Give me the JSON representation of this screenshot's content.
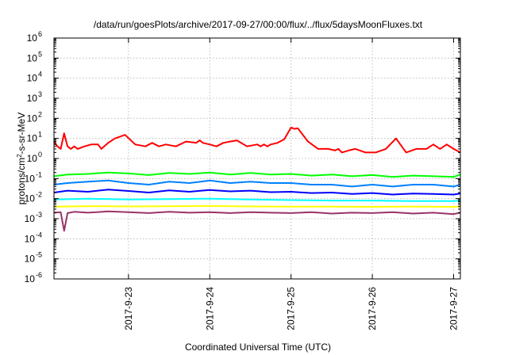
{
  "chart_data": {
    "type": "line",
    "title": "/data/run/goesPlots/archive/2017-09-27/00:00/flux/../flux/5daysMoonFluxes.txt",
    "xlabel": "Coordinated Universal Time (UTC)",
    "ylabel": {
      "pre": "protons/cm",
      "sup": "2",
      "post": "-s-sr-MeV"
    },
    "y_scale": "log",
    "ylim_exponent": [
      -6,
      6
    ],
    "y_ticks": [
      {
        "base": "10",
        "exp": "6"
      },
      {
        "base": "10",
        "exp": "5"
      },
      {
        "base": "10",
        "exp": "4"
      },
      {
        "base": "10",
        "exp": "3"
      },
      {
        "base": "10",
        "exp": "2"
      },
      {
        "base": "10",
        "exp": "1"
      },
      {
        "base": "10",
        "exp": "0"
      },
      {
        "base": "10",
        "exp": "-1"
      },
      {
        "base": "10",
        "exp": "-2"
      },
      {
        "base": "10",
        "exp": "-3"
      },
      {
        "base": "10",
        "exp": "-4"
      },
      {
        "base": "10",
        "exp": "-5"
      },
      {
        "base": "10",
        "exp": "-6"
      }
    ],
    "xlim": [
      "2017-09-22T02:00",
      "2017-09-27T02:00"
    ],
    "x_ticks": [
      {
        "label": "2017-9-23",
        "t": "2017-09-23T00:00"
      },
      {
        "label": "2017-9-24",
        "t": "2017-09-24T00:00"
      },
      {
        "label": "2017-9-25",
        "t": "2017-09-25T00:00"
      },
      {
        "label": "2017-9-26",
        "t": "2017-09-26T00:00"
      },
      {
        "label": "2017-9-27",
        "t": "2017-09-27T00:00"
      }
    ],
    "grid": true,
    "legend": null,
    "series": [
      {
        "color": "#ff0000",
        "x": [
          "2017-09-22T02:00",
          "2017-09-22T03:00",
          "2017-09-22T04:00",
          "2017-09-22T05:00",
          "2017-09-22T06:00",
          "2017-09-22T07:00",
          "2017-09-22T08:00",
          "2017-09-22T09:00",
          "2017-09-22T11:00",
          "2017-09-22T13:00",
          "2017-09-22T15:00",
          "2017-09-22T16:00",
          "2017-09-22T18:00",
          "2017-09-22T20:00",
          "2017-09-22T23:00",
          "2017-09-23T02:00",
          "2017-09-23T05:00",
          "2017-09-23T07:00",
          "2017-09-23T09:00",
          "2017-09-23T11:00",
          "2017-09-23T14:00",
          "2017-09-23T17:00",
          "2017-09-23T20:00",
          "2017-09-23T21:00",
          "2017-09-23T22:00",
          "2017-09-24T00:00",
          "2017-09-24T02:00",
          "2017-09-24T04:00",
          "2017-09-24T06:00",
          "2017-09-24T08:00",
          "2017-09-24T11:00",
          "2017-09-24T14:00",
          "2017-09-24T15:00",
          "2017-09-24T16:00",
          "2017-09-24T17:00",
          "2017-09-24T18:00",
          "2017-09-24T20:00",
          "2017-09-24T22:00",
          "2017-09-25T00:00",
          "2017-09-25T01:00",
          "2017-09-25T02:00",
          "2017-09-25T05:00",
          "2017-09-25T08:00",
          "2017-09-25T11:00",
          "2017-09-25T13:00",
          "2017-09-25T14:00",
          "2017-09-25T15:00",
          "2017-09-25T17:00",
          "2017-09-25T19:00",
          "2017-09-25T22:00",
          "2017-09-26T01:00",
          "2017-09-26T04:00",
          "2017-09-26T07:00",
          "2017-09-26T10:00",
          "2017-09-26T13:00",
          "2017-09-26T16:00",
          "2017-09-26T18:00",
          "2017-09-26T20:00",
          "2017-09-26T22:00",
          "2017-09-27T00:00",
          "2017-09-27T02:00"
        ],
        "y": [
          7,
          4,
          3,
          18,
          4,
          3,
          4,
          3,
          4,
          5,
          5,
          3,
          6,
          10,
          15,
          5,
          4,
          6,
          4,
          5,
          4,
          7,
          6,
          8,
          6,
          5,
          4,
          6,
          7,
          8,
          4,
          5,
          4,
          5,
          4,
          5,
          6,
          9,
          35,
          30,
          32,
          7,
          3,
          3,
          2.5,
          3,
          2,
          2.5,
          3,
          2,
          2,
          3,
          10,
          2,
          3,
          3,
          5,
          3,
          5,
          3,
          2
        ]
      },
      {
        "color": "#00ff00",
        "x": [
          "2017-09-22T02:00",
          "2017-09-22T06:00",
          "2017-09-22T12:00",
          "2017-09-22T18:00",
          "2017-09-23T00:00",
          "2017-09-23T06:00",
          "2017-09-23T12:00",
          "2017-09-23T18:00",
          "2017-09-24T00:00",
          "2017-09-24T06:00",
          "2017-09-24T12:00",
          "2017-09-24T18:00",
          "2017-09-25T00:00",
          "2017-09-25T06:00",
          "2017-09-25T12:00",
          "2017-09-25T18:00",
          "2017-09-26T00:00",
          "2017-09-26T06:00",
          "2017-09-26T12:00",
          "2017-09-26T18:00",
          "2017-09-27T00:00",
          "2017-09-27T02:00"
        ],
        "y": [
          0.13,
          0.16,
          0.17,
          0.2,
          0.18,
          0.15,
          0.19,
          0.17,
          0.2,
          0.16,
          0.19,
          0.16,
          0.17,
          0.14,
          0.16,
          0.13,
          0.15,
          0.12,
          0.14,
          0.13,
          0.12,
          0.16
        ]
      },
      {
        "color": "#0080ff",
        "x": [
          "2017-09-22T02:00",
          "2017-09-22T06:00",
          "2017-09-22T12:00",
          "2017-09-22T18:00",
          "2017-09-23T00:00",
          "2017-09-23T06:00",
          "2017-09-23T12:00",
          "2017-09-23T18:00",
          "2017-09-24T00:00",
          "2017-09-24T06:00",
          "2017-09-24T12:00",
          "2017-09-24T18:00",
          "2017-09-25T00:00",
          "2017-09-25T06:00",
          "2017-09-25T12:00",
          "2017-09-25T18:00",
          "2017-09-26T00:00",
          "2017-09-26T06:00",
          "2017-09-26T12:00",
          "2017-09-26T18:00",
          "2017-09-27T00:00",
          "2017-09-27T02:00"
        ],
        "y": [
          0.05,
          0.06,
          0.07,
          0.08,
          0.06,
          0.05,
          0.07,
          0.06,
          0.08,
          0.06,
          0.07,
          0.06,
          0.06,
          0.05,
          0.05,
          0.04,
          0.05,
          0.04,
          0.05,
          0.05,
          0.04,
          0.05
        ]
      },
      {
        "color": "#0000ff",
        "x": [
          "2017-09-22T02:00",
          "2017-09-22T06:00",
          "2017-09-22T12:00",
          "2017-09-22T18:00",
          "2017-09-23T00:00",
          "2017-09-23T06:00",
          "2017-09-23T12:00",
          "2017-09-23T18:00",
          "2017-09-24T00:00",
          "2017-09-24T06:00",
          "2017-09-24T12:00",
          "2017-09-24T18:00",
          "2017-09-25T00:00",
          "2017-09-25T06:00",
          "2017-09-25T12:00",
          "2017-09-25T18:00",
          "2017-09-26T00:00",
          "2017-09-26T06:00",
          "2017-09-26T12:00",
          "2017-09-26T18:00",
          "2017-09-27T00:00",
          "2017-09-27T02:00"
        ],
        "y": [
          0.02,
          0.025,
          0.022,
          0.028,
          0.024,
          0.02,
          0.026,
          0.022,
          0.027,
          0.023,
          0.025,
          0.021,
          0.022,
          0.019,
          0.02,
          0.017,
          0.019,
          0.016,
          0.018,
          0.017,
          0.016,
          0.018
        ]
      },
      {
        "color": "#00ffff",
        "x": [
          "2017-09-22T02:00",
          "2017-09-22T12:00",
          "2017-09-23T00:00",
          "2017-09-23T12:00",
          "2017-09-24T00:00",
          "2017-09-24T12:00",
          "2017-09-25T00:00",
          "2017-09-25T12:00",
          "2017-09-26T00:00",
          "2017-09-26T12:00",
          "2017-09-27T00:00",
          "2017-09-27T02:00"
        ],
        "y": [
          0.009,
          0.01,
          0.009,
          0.0095,
          0.01,
          0.009,
          0.0085,
          0.008,
          0.008,
          0.0075,
          0.0075,
          0.008
        ]
      },
      {
        "color": "#ffff00",
        "x": [
          "2017-09-22T02:00",
          "2017-09-22T12:00",
          "2017-09-23T00:00",
          "2017-09-23T12:00",
          "2017-09-24T00:00",
          "2017-09-24T12:00",
          "2017-09-25T00:00",
          "2017-09-25T12:00",
          "2017-09-26T00:00",
          "2017-09-26T12:00",
          "2017-09-27T00:00",
          "2017-09-27T02:00"
        ],
        "y": [
          0.004,
          0.0042,
          0.0041,
          0.0042,
          0.0043,
          0.0041,
          0.004,
          0.004,
          0.0039,
          0.004,
          0.0039,
          0.004
        ]
      },
      {
        "color": "#993366",
        "x": [
          "2017-09-22T02:00",
          "2017-09-22T04:00",
          "2017-09-22T05:00",
          "2017-09-22T06:00",
          "2017-09-22T08:00",
          "2017-09-22T12:00",
          "2017-09-22T18:00",
          "2017-09-23T00:00",
          "2017-09-23T06:00",
          "2017-09-23T12:00",
          "2017-09-23T18:00",
          "2017-09-24T00:00",
          "2017-09-24T06:00",
          "2017-09-24T12:00",
          "2017-09-24T18:00",
          "2017-09-25T00:00",
          "2017-09-25T06:00",
          "2017-09-25T12:00",
          "2017-09-25T18:00",
          "2017-09-26T00:00",
          "2017-09-26T06:00",
          "2017-09-26T12:00",
          "2017-09-26T18:00",
          "2017-09-27T00:00",
          "2017-09-27T02:00"
        ],
        "y": [
          0.002,
          0.0021,
          0.00025,
          0.0019,
          0.0022,
          0.002,
          0.0023,
          0.0021,
          0.0019,
          0.0022,
          0.002,
          0.0021,
          0.0019,
          0.0021,
          0.002,
          0.0019,
          0.0021,
          0.0018,
          0.002,
          0.0019,
          0.0021,
          0.0018,
          0.002,
          0.0017,
          0.002
        ]
      }
    ]
  }
}
